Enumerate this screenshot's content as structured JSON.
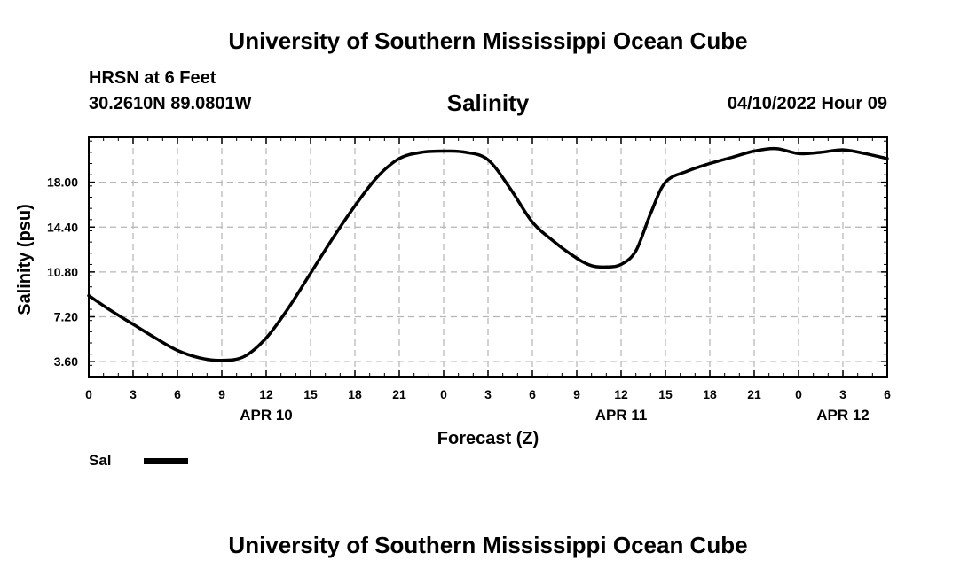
{
  "header": {
    "top_title": "University of Southern Mississippi Ocean Cube",
    "station": "HRSN at 6 Feet",
    "coords": "30.2610N  89.0801W",
    "variable": "Salinity",
    "datetime": "04/10/2022 Hour 09"
  },
  "footer": {
    "bottom_title": "University of Southern Mississippi Ocean Cube"
  },
  "legend": {
    "label": "Sal",
    "color": "#000000"
  },
  "chart_data": {
    "type": "line",
    "title": "Salinity",
    "xlabel": "Forecast (Z)",
    "ylabel": "Salinity (psu)",
    "xlim": [
      0,
      54
    ],
    "ylim": [
      2.4,
      21.6
    ],
    "grid": true,
    "x_ticks": [
      0,
      3,
      6,
      9,
      12,
      15,
      18,
      21,
      24,
      27,
      30,
      33,
      36,
      39,
      42,
      45,
      48,
      51,
      54
    ],
    "x_tick_labels": [
      "0",
      "3",
      "6",
      "9",
      "12",
      "15",
      "18",
      "21",
      "0",
      "3",
      "6",
      "9",
      "12",
      "15",
      "18",
      "21",
      "0",
      "3",
      "6"
    ],
    "y_ticks": [
      3.6,
      7.2,
      10.8,
      14.4,
      18.0
    ],
    "y_tick_labels": [
      "3.60",
      "7.20",
      "10.80",
      "14.40",
      "18.00"
    ],
    "date_labels": [
      {
        "x": 12,
        "text": "APR 10"
      },
      {
        "x": 36,
        "text": "APR 11"
      },
      {
        "x": 51,
        "text": "APR 12"
      }
    ],
    "series": [
      {
        "name": "Sal",
        "x": [
          0,
          1.5,
          3,
          4.5,
          6,
          7.5,
          9,
          10.5,
          12,
          13.5,
          15,
          16.5,
          18,
          19.5,
          21,
          22.5,
          24,
          25.5,
          27,
          28.5,
          30,
          31.5,
          33,
          34,
          35,
          36,
          37,
          38,
          39,
          40.5,
          42,
          43.5,
          45,
          46.5,
          48,
          49.5,
          51,
          52.5,
          54
        ],
        "values": [
          8.9,
          7.7,
          6.6,
          5.5,
          4.5,
          3.9,
          3.7,
          4.0,
          5.5,
          7.9,
          10.7,
          13.5,
          16.1,
          18.4,
          19.9,
          20.4,
          20.5,
          20.4,
          19.8,
          17.5,
          14.8,
          13.2,
          11.9,
          11.3,
          11.2,
          11.4,
          12.5,
          15.5,
          18.0,
          18.9,
          19.5,
          20.0,
          20.5,
          20.7,
          20.3,
          20.4,
          20.6,
          20.3,
          19.9
        ]
      }
    ]
  }
}
